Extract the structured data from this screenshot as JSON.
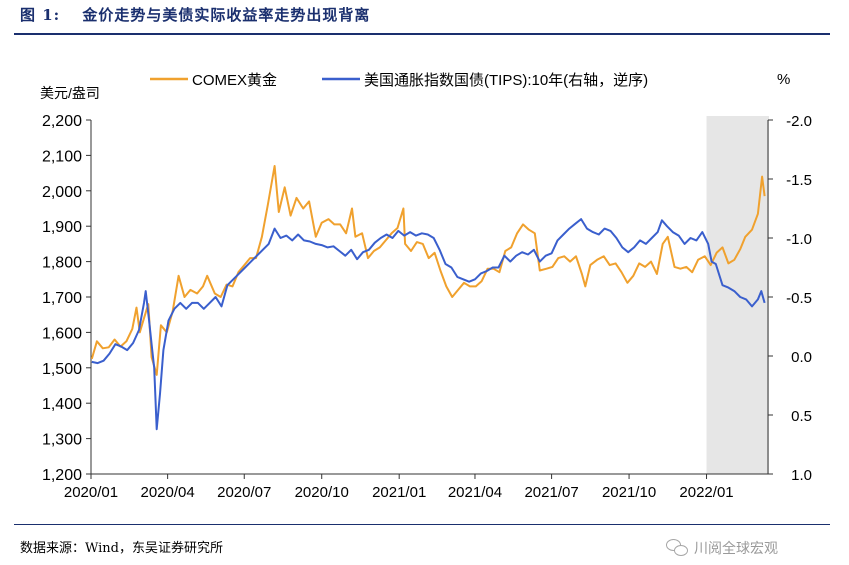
{
  "title": "图 1:　 金价走势与美债实际收益率走势出现背离",
  "source": "数据来源：Wind，东吴证券研究所",
  "watermark": "川阅全球宏观",
  "watermark_icon": "wechat-icon",
  "colors": {
    "gold": "#f0a12e",
    "tips": "#3a5fcd",
    "title": "#1a2f6e",
    "shade": "#e6e6e6"
  },
  "chart_data": {
    "type": "line",
    "left_unit": "美元/盎司",
    "right_unit": "%",
    "left_ylim": [
      1200,
      2200
    ],
    "left_ticks": [
      "1,200",
      "1,300",
      "1,400",
      "1,500",
      "1,600",
      "1,700",
      "1,800",
      "1,900",
      "2,000",
      "2,100",
      "2,200"
    ],
    "right_ylim": [
      1.0,
      -2.0
    ],
    "right_inverted": true,
    "right_ticks": [
      "1.0",
      "0.5",
      "0.0",
      "-0.5",
      "-1.0",
      "-1.5",
      "-2.0"
    ],
    "x_ticks": [
      "2020/01",
      "2020/04",
      "2020/07",
      "2020/10",
      "2021/01",
      "2021/04",
      "2021/07",
      "2021/10",
      "2022/01"
    ],
    "x_range": [
      "2020-01-01",
      "2022-03-15"
    ],
    "shaded_region": [
      "2022-01-01",
      "2022-03-15"
    ],
    "legend_position": "top",
    "series": [
      {
        "name": "COMEX黄金",
        "axis": "left",
        "points": [
          [
            "2020-01-02",
            1525
          ],
          [
            "2020-01-08",
            1575
          ],
          [
            "2020-01-15",
            1555
          ],
          [
            "2020-01-22",
            1558
          ],
          [
            "2020-01-29",
            1580
          ],
          [
            "2020-02-05",
            1560
          ],
          [
            "2020-02-12",
            1575
          ],
          [
            "2020-02-19",
            1610
          ],
          [
            "2020-02-24",
            1670
          ],
          [
            "2020-02-28",
            1600
          ],
          [
            "2020-03-04",
            1640
          ],
          [
            "2020-03-09",
            1680
          ],
          [
            "2020-03-13",
            1530
          ],
          [
            "2020-03-19",
            1480
          ],
          [
            "2020-03-24",
            1620
          ],
          [
            "2020-03-31",
            1600
          ],
          [
            "2020-04-07",
            1660
          ],
          [
            "2020-04-14",
            1760
          ],
          [
            "2020-04-21",
            1700
          ],
          [
            "2020-04-28",
            1720
          ],
          [
            "2020-05-06",
            1710
          ],
          [
            "2020-05-13",
            1730
          ],
          [
            "2020-05-18",
            1760
          ],
          [
            "2020-05-27",
            1710
          ],
          [
            "2020-06-03",
            1700
          ],
          [
            "2020-06-10",
            1735
          ],
          [
            "2020-06-17",
            1730
          ],
          [
            "2020-06-24",
            1770
          ],
          [
            "2020-07-01",
            1790
          ],
          [
            "2020-07-08",
            1810
          ],
          [
            "2020-07-15",
            1810
          ],
          [
            "2020-07-22",
            1870
          ],
          [
            "2020-07-29",
            1960
          ],
          [
            "2020-08-06",
            2070
          ],
          [
            "2020-08-11",
            1940
          ],
          [
            "2020-08-18",
            2010
          ],
          [
            "2020-08-25",
            1930
          ],
          [
            "2020-09-01",
            1980
          ],
          [
            "2020-09-09",
            1950
          ],
          [
            "2020-09-16",
            1970
          ],
          [
            "2020-09-24",
            1870
          ],
          [
            "2020-10-01",
            1910
          ],
          [
            "2020-10-09",
            1920
          ],
          [
            "2020-10-16",
            1905
          ],
          [
            "2020-10-23",
            1905
          ],
          [
            "2020-10-30",
            1880
          ],
          [
            "2020-11-06",
            1950
          ],
          [
            "2020-11-10",
            1870
          ],
          [
            "2020-11-18",
            1880
          ],
          [
            "2020-11-25",
            1810
          ],
          [
            "2020-12-02",
            1830
          ],
          [
            "2020-12-09",
            1840
          ],
          [
            "2020-12-16",
            1860
          ],
          [
            "2020-12-23",
            1880
          ],
          [
            "2020-12-30",
            1895
          ],
          [
            "2021-01-06",
            1950
          ],
          [
            "2021-01-08",
            1850
          ],
          [
            "2021-01-15",
            1830
          ],
          [
            "2021-01-22",
            1855
          ],
          [
            "2021-01-29",
            1850
          ],
          [
            "2021-02-05",
            1810
          ],
          [
            "2021-02-12",
            1825
          ],
          [
            "2021-02-19",
            1775
          ],
          [
            "2021-02-26",
            1730
          ],
          [
            "2021-03-05",
            1700
          ],
          [
            "2021-03-12",
            1720
          ],
          [
            "2021-03-19",
            1740
          ],
          [
            "2021-03-26",
            1730
          ],
          [
            "2021-04-02",
            1730
          ],
          [
            "2021-04-09",
            1745
          ],
          [
            "2021-04-16",
            1780
          ],
          [
            "2021-04-23",
            1780
          ],
          [
            "2021-04-30",
            1770
          ],
          [
            "2021-05-07",
            1830
          ],
          [
            "2021-05-14",
            1840
          ],
          [
            "2021-05-21",
            1880
          ],
          [
            "2021-05-28",
            1905
          ],
          [
            "2021-06-04",
            1890
          ],
          [
            "2021-06-11",
            1880
          ],
          [
            "2021-06-17",
            1775
          ],
          [
            "2021-06-25",
            1780
          ],
          [
            "2021-07-02",
            1785
          ],
          [
            "2021-07-09",
            1810
          ],
          [
            "2021-07-16",
            1815
          ],
          [
            "2021-07-23",
            1800
          ],
          [
            "2021-07-30",
            1815
          ],
          [
            "2021-08-06",
            1765
          ],
          [
            "2021-08-10",
            1730
          ],
          [
            "2021-08-16",
            1790
          ],
          [
            "2021-08-24",
            1805
          ],
          [
            "2021-09-01",
            1815
          ],
          [
            "2021-09-08",
            1790
          ],
          [
            "2021-09-15",
            1795
          ],
          [
            "2021-09-22",
            1770
          ],
          [
            "2021-09-29",
            1740
          ],
          [
            "2021-10-06",
            1760
          ],
          [
            "2021-10-13",
            1795
          ],
          [
            "2021-10-20",
            1785
          ],
          [
            "2021-10-27",
            1800
          ],
          [
            "2021-11-03",
            1765
          ],
          [
            "2021-11-10",
            1850
          ],
          [
            "2021-11-16",
            1870
          ],
          [
            "2021-11-24",
            1785
          ],
          [
            "2021-12-01",
            1780
          ],
          [
            "2021-12-08",
            1785
          ],
          [
            "2021-12-15",
            1770
          ],
          [
            "2021-12-22",
            1805
          ],
          [
            "2021-12-30",
            1815
          ],
          [
            "2022-01-06",
            1790
          ],
          [
            "2022-01-13",
            1825
          ],
          [
            "2022-01-20",
            1840
          ],
          [
            "2022-01-27",
            1795
          ],
          [
            "2022-02-03",
            1805
          ],
          [
            "2022-02-10",
            1835
          ],
          [
            "2022-02-16",
            1870
          ],
          [
            "2022-02-24",
            1890
          ],
          [
            "2022-03-03",
            1935
          ],
          [
            "2022-03-08",
            2040
          ],
          [
            "2022-03-11",
            1985
          ]
        ]
      },
      {
        "name": "美国通胀指数国债(TIPS):10年(右轴，逆序)",
        "axis": "right",
        "points": [
          [
            "2020-01-02",
            0.05
          ],
          [
            "2020-01-09",
            0.06
          ],
          [
            "2020-01-16",
            0.04
          ],
          [
            "2020-01-23",
            -0.02
          ],
          [
            "2020-01-30",
            -0.1
          ],
          [
            "2020-02-06",
            -0.08
          ],
          [
            "2020-02-13",
            -0.05
          ],
          [
            "2020-02-20",
            -0.11
          ],
          [
            "2020-02-27",
            -0.22
          ],
          [
            "2020-03-04",
            -0.45
          ],
          [
            "2020-03-06",
            -0.55
          ],
          [
            "2020-03-10",
            -0.3
          ],
          [
            "2020-03-13",
            -0.1
          ],
          [
            "2020-03-16",
            0.1
          ],
          [
            "2020-03-19",
            0.62
          ],
          [
            "2020-03-23",
            0.32
          ],
          [
            "2020-03-27",
            -0.05
          ],
          [
            "2020-04-02",
            -0.3
          ],
          [
            "2020-04-09",
            -0.4
          ],
          [
            "2020-04-16",
            -0.45
          ],
          [
            "2020-04-23",
            -0.4
          ],
          [
            "2020-04-30",
            -0.45
          ],
          [
            "2020-05-07",
            -0.45
          ],
          [
            "2020-05-14",
            -0.4
          ],
          [
            "2020-05-21",
            -0.45
          ],
          [
            "2020-05-28",
            -0.5
          ],
          [
            "2020-06-04",
            -0.42
          ],
          [
            "2020-06-11",
            -0.6
          ],
          [
            "2020-06-18",
            -0.65
          ],
          [
            "2020-06-25",
            -0.7
          ],
          [
            "2020-07-02",
            -0.75
          ],
          [
            "2020-07-09",
            -0.8
          ],
          [
            "2020-07-16",
            -0.85
          ],
          [
            "2020-07-23",
            -0.9
          ],
          [
            "2020-07-30",
            -0.95
          ],
          [
            "2020-08-06",
            -1.08
          ],
          [
            "2020-08-13",
            -1.0
          ],
          [
            "2020-08-20",
            -1.02
          ],
          [
            "2020-08-27",
            -0.98
          ],
          [
            "2020-09-03",
            -1.03
          ],
          [
            "2020-09-10",
            -0.98
          ],
          [
            "2020-09-17",
            -0.97
          ],
          [
            "2020-09-24",
            -0.95
          ],
          [
            "2020-10-01",
            -0.94
          ],
          [
            "2020-10-08",
            -0.92
          ],
          [
            "2020-10-15",
            -0.93
          ],
          [
            "2020-10-22",
            -0.89
          ],
          [
            "2020-10-29",
            -0.85
          ],
          [
            "2020-11-05",
            -0.9
          ],
          [
            "2020-11-12",
            -0.82
          ],
          [
            "2020-11-19",
            -0.88
          ],
          [
            "2020-11-26",
            -0.9
          ],
          [
            "2020-12-03",
            -0.96
          ],
          [
            "2020-12-10",
            -1.0
          ],
          [
            "2020-12-17",
            -1.03
          ],
          [
            "2020-12-24",
            -1.0
          ],
          [
            "2020-12-31",
            -1.06
          ],
          [
            "2021-01-07",
            -1.02
          ],
          [
            "2021-01-14",
            -1.05
          ],
          [
            "2021-01-21",
            -1.02
          ],
          [
            "2021-01-28",
            -1.04
          ],
          [
            "2021-02-04",
            -1.03
          ],
          [
            "2021-02-11",
            -1.0
          ],
          [
            "2021-02-18",
            -0.9
          ],
          [
            "2021-02-25",
            -0.78
          ],
          [
            "2021-03-04",
            -0.75
          ],
          [
            "2021-03-11",
            -0.67
          ],
          [
            "2021-03-18",
            -0.65
          ],
          [
            "2021-03-25",
            -0.63
          ],
          [
            "2021-04-01",
            -0.65
          ],
          [
            "2021-04-08",
            -0.7
          ],
          [
            "2021-04-15",
            -0.72
          ],
          [
            "2021-04-22",
            -0.75
          ],
          [
            "2021-04-29",
            -0.75
          ],
          [
            "2021-05-06",
            -0.85
          ],
          [
            "2021-05-13",
            -0.8
          ],
          [
            "2021-05-20",
            -0.85
          ],
          [
            "2021-05-27",
            -0.88
          ],
          [
            "2021-06-03",
            -0.86
          ],
          [
            "2021-06-10",
            -0.9
          ],
          [
            "2021-06-17",
            -0.8
          ],
          [
            "2021-06-24",
            -0.85
          ],
          [
            "2021-07-01",
            -0.87
          ],
          [
            "2021-07-08",
            -0.98
          ],
          [
            "2021-07-15",
            -1.03
          ],
          [
            "2021-07-22",
            -1.08
          ],
          [
            "2021-07-29",
            -1.12
          ],
          [
            "2021-08-05",
            -1.16
          ],
          [
            "2021-08-12",
            -1.08
          ],
          [
            "2021-08-19",
            -1.05
          ],
          [
            "2021-08-26",
            -1.03
          ],
          [
            "2021-09-02",
            -1.08
          ],
          [
            "2021-09-09",
            -1.06
          ],
          [
            "2021-09-16",
            -1.0
          ],
          [
            "2021-09-23",
            -0.92
          ],
          [
            "2021-09-30",
            -0.88
          ],
          [
            "2021-10-07",
            -0.92
          ],
          [
            "2021-10-14",
            -0.98
          ],
          [
            "2021-10-21",
            -0.95
          ],
          [
            "2021-10-28",
            -1.0
          ],
          [
            "2021-11-04",
            -1.05
          ],
          [
            "2021-11-09",
            -1.15
          ],
          [
            "2021-11-15",
            -1.1
          ],
          [
            "2021-11-22",
            -1.05
          ],
          [
            "2021-11-29",
            -1.02
          ],
          [
            "2021-12-06",
            -0.95
          ],
          [
            "2021-12-13",
            -1.0
          ],
          [
            "2021-12-20",
            -0.98
          ],
          [
            "2021-12-27",
            -1.05
          ],
          [
            "2022-01-03",
            -0.95
          ],
          [
            "2022-01-07",
            -0.8
          ],
          [
            "2022-01-12",
            -0.78
          ],
          [
            "2022-01-20",
            -0.6
          ],
          [
            "2022-01-27",
            -0.58
          ],
          [
            "2022-02-03",
            -0.55
          ],
          [
            "2022-02-10",
            -0.5
          ],
          [
            "2022-02-17",
            -0.48
          ],
          [
            "2022-02-24",
            -0.42
          ],
          [
            "2022-03-03",
            -0.48
          ],
          [
            "2022-03-07",
            -0.55
          ],
          [
            "2022-03-11",
            -0.45
          ]
        ]
      }
    ]
  }
}
